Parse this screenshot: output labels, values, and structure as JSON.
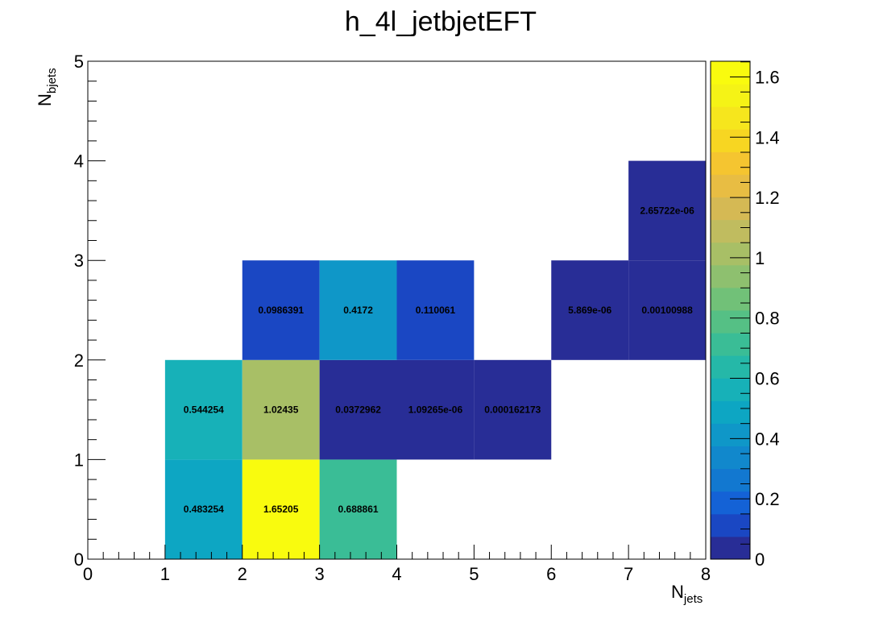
{
  "chart_data": {
    "type": "heatmap",
    "title": "h_4l_jetbjetEFT",
    "xlabel": {
      "main": "N",
      "sub": "jets"
    },
    "ylabel": {
      "main": "N",
      "sub": "bjets"
    },
    "xlim": [
      0,
      8
    ],
    "ylim": [
      0,
      5
    ],
    "x_ticks": [
      "0",
      "1",
      "2",
      "3",
      "4",
      "5",
      "6",
      "7",
      "8"
    ],
    "y_ticks": [
      "0",
      "1",
      "2",
      "3",
      "4",
      "5"
    ],
    "zlim": [
      0,
      1.65205
    ],
    "colorbar_ticks": [
      "0",
      "0.2",
      "0.4",
      "0.6",
      "0.8",
      "1",
      "1.2",
      "1.4",
      "1.6"
    ],
    "cells": [
      {
        "x": 1,
        "y": 0,
        "value": 0.483254,
        "label": "0.483254"
      },
      {
        "x": 2,
        "y": 0,
        "value": 1.65205,
        "label": "1.65205"
      },
      {
        "x": 3,
        "y": 0,
        "value": 0.688861,
        "label": "0.688861"
      },
      {
        "x": 1,
        "y": 1,
        "value": 0.544254,
        "label": "0.544254"
      },
      {
        "x": 2,
        "y": 1,
        "value": 1.02435,
        "label": "1.02435"
      },
      {
        "x": 3,
        "y": 1,
        "value": 0.0372962,
        "label": "0.0372962"
      },
      {
        "x": 4,
        "y": 1,
        "value": 1.09265e-06,
        "label": "1.09265e-06"
      },
      {
        "x": 5,
        "y": 1,
        "value": 0.000162173,
        "label": "0.000162173"
      },
      {
        "x": 2,
        "y": 2,
        "value": 0.0986391,
        "label": "0.0986391"
      },
      {
        "x": 3,
        "y": 2,
        "value": 0.4172,
        "label": "0.4172"
      },
      {
        "x": 4,
        "y": 2,
        "value": 0.110061,
        "label": "0.110061"
      },
      {
        "x": 6,
        "y": 2,
        "value": 5.869e-06,
        "label": "5.869e-06"
      },
      {
        "x": 7,
        "y": 2,
        "value": 0.00100988,
        "label": "0.00100988"
      },
      {
        "x": 7,
        "y": 3,
        "value": 2.65722e-06,
        "label": "2.65722e-06"
      }
    ],
    "palette": [
      "#282d96",
      "#1a47c3",
      "#1462d6",
      "#1278d0",
      "#1188cc",
      "#0f97c8",
      "#0da6c3",
      "#17b1b8",
      "#25b8a8",
      "#3abd96",
      "#55c085",
      "#71c178",
      "#8ec06f",
      "#a8bf66",
      "#c0bc5f",
      "#d5b954",
      "#e8bd43",
      "#f5c530",
      "#f7d622",
      "#f6e61d",
      "#f5f316",
      "#f9fb0e"
    ],
    "grid": false,
    "colorbar": "right"
  }
}
